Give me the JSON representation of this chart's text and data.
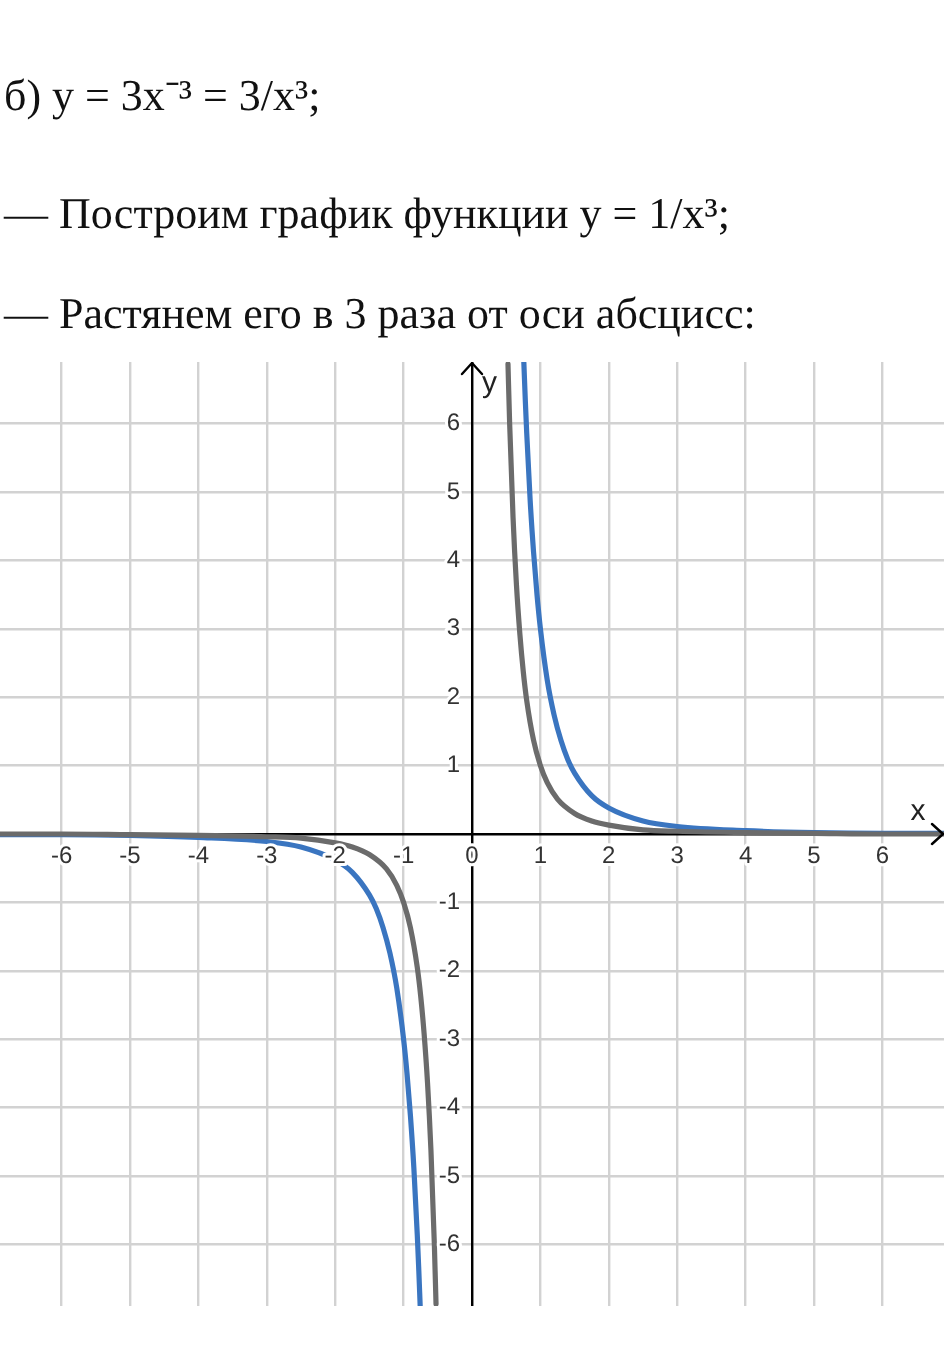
{
  "chart_data": {
    "type": "line",
    "title": "б) y = 3x⁻³ = 3/x³;",
    "subtitle": "— Построим график функции y = 1/x³;",
    "annotations": [
      "— Растянем его в 3 раза от оси абсцисс:"
    ],
    "xlabel": "x",
    "ylabel": "y",
    "xlim": [
      -6.9,
      6.9
    ],
    "ylim": [
      -6.9,
      6.9
    ],
    "xticks": [
      -6,
      -5,
      -4,
      -3,
      -2,
      -1,
      0,
      1,
      2,
      3,
      4,
      5,
      6
    ],
    "yticks": [
      -6,
      -5,
      -4,
      -3,
      -2,
      -1,
      1,
      2,
      3,
      4,
      5,
      6
    ],
    "grid": true,
    "marker": "none",
    "line_style": "solid",
    "series": [
      {
        "color": "#6b6b6b",
        "x": [
          -6.9,
          -6,
          -5,
          -4,
          -3,
          -2.5,
          -2,
          -1.75,
          -1.5,
          -1.25,
          -1.1,
          -1,
          -0.9,
          -0.8,
          -0.75,
          -0.7,
          -0.65,
          -0.6,
          -0.55,
          -0.526,
          0,
          0.526,
          0.55,
          0.6,
          0.65,
          0.7,
          0.75,
          0.8,
          0.9,
          1,
          1.1,
          1.25,
          1.5,
          1.75,
          2,
          2.5,
          3,
          4,
          5,
          6,
          6.9
        ],
        "values": [
          0,
          0,
          -0.01,
          -0.02,
          -0.04,
          -0.06,
          -0.13,
          -0.19,
          -0.3,
          -0.51,
          -0.75,
          -1,
          -1.37,
          -1.95,
          -2.37,
          -2.92,
          -3.64,
          -4.63,
          -6.01,
          -6.87,
          null,
          6.87,
          6.01,
          4.63,
          3.64,
          2.92,
          2.37,
          1.95,
          1.37,
          1,
          0.75,
          0.51,
          0.3,
          0.19,
          0.13,
          0.06,
          0.04,
          0.02,
          0.01,
          0,
          0
        ]
      },
      {
        "color": "#3a75c0",
        "x": [
          -6.9,
          -6,
          -5,
          -4,
          -3,
          -2.5,
          -2,
          -1.75,
          -1.5,
          -1.4,
          -1.3,
          -1.2,
          -1.1,
          -1,
          -0.95,
          -0.9,
          -0.85,
          -0.8,
          -0.78,
          -0.758,
          0,
          0.758,
          0.78,
          0.8,
          0.85,
          0.9,
          0.95,
          1,
          1.1,
          1.2,
          1.3,
          1.4,
          1.5,
          1.75,
          2,
          2.5,
          3,
          4,
          5,
          6,
          6.9
        ],
        "values": [
          -0.01,
          -0.01,
          -0.02,
          -0.05,
          -0.11,
          -0.19,
          -0.38,
          -0.56,
          -0.89,
          -1.09,
          -1.37,
          -1.74,
          -2.25,
          -3,
          -3.5,
          -4.12,
          -4.88,
          -5.86,
          -6.32,
          -6.89,
          null,
          6.89,
          6.32,
          5.86,
          4.88,
          4.12,
          3.5,
          3,
          2.25,
          1.74,
          1.37,
          1.09,
          0.89,
          0.56,
          0.38,
          0.19,
          0.11,
          0.05,
          0.02,
          0.01,
          0.01
        ]
      }
    ]
  }
}
